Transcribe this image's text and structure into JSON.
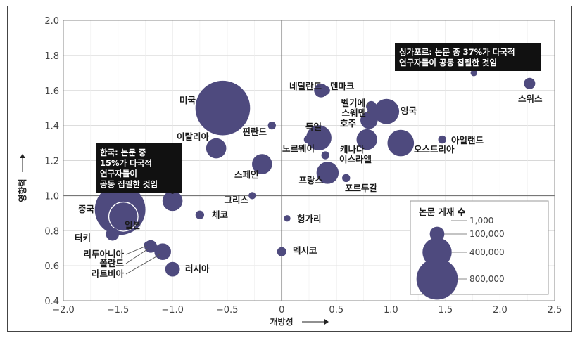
{
  "chart_data": {
    "type": "scatter",
    "xlabel": "개방성",
    "ylabel": "영향력",
    "xlim": [
      -2.0,
      2.5
    ],
    "ylim": [
      0.4,
      2.0
    ],
    "xticks": [
      "−2.0",
      "−1.5",
      "−1.0",
      "−0.5",
      "0",
      "0.5",
      "1.0",
      "1.5",
      "2.0",
      "2.5"
    ],
    "yticks": [
      "0.4",
      "0.6",
      "0.8",
      "1.0",
      "1.2",
      "1.4",
      "1.6",
      "1.8",
      "2.0"
    ],
    "bubble_color": "#4e4a7e",
    "grid": true,
    "points": [
      {
        "label": "스위스",
        "x": 2.27,
        "y": 1.64,
        "size": 60000
      },
      {
        "label": "싱가포르",
        "x": 1.76,
        "y": 1.7,
        "size": 20000
      },
      {
        "label": "네덜란드",
        "x": 0.36,
        "y": 1.6,
        "size": 90000
      },
      {
        "label": "덴마크",
        "x": 0.4,
        "y": 1.6,
        "size": 40000
      },
      {
        "label": "벨기에",
        "x": 0.82,
        "y": 1.51,
        "size": 50000
      },
      {
        "label": "스웨덴",
        "x": 0.83,
        "y": 1.47,
        "size": 55000
      },
      {
        "label": "영국",
        "x": 0.96,
        "y": 1.48,
        "size": 300000
      },
      {
        "label": "미국",
        "x": -0.54,
        "y": 1.5,
        "size": 1400000
      },
      {
        "label": "호주",
        "x": 0.8,
        "y": 1.43,
        "size": 140000
      },
      {
        "label": "핀란드",
        "x": -0.09,
        "y": 1.4,
        "size": 30000
      },
      {
        "label": "독일",
        "x": 0.34,
        "y": 1.33,
        "size": 300000
      },
      {
        "label": "노르웨이",
        "x": 0.24,
        "y": 1.32,
        "size": 30000
      },
      {
        "label": "아일랜드",
        "x": 1.47,
        "y": 1.32,
        "size": 30000
      },
      {
        "label": "캐나다",
        "x": 0.78,
        "y": 1.32,
        "size": 200000
      },
      {
        "label": "오스트리아",
        "x": 1.09,
        "y": 1.3,
        "size": 330000
      },
      {
        "label": "이탈리아",
        "x": -0.6,
        "y": 1.27,
        "size": 190000
      },
      {
        "label": "이스라엘",
        "x": 0.4,
        "y": 1.23,
        "size": 30000
      },
      {
        "label": "스페인",
        "x": -0.18,
        "y": 1.18,
        "size": 190000
      },
      {
        "label": "프랑스",
        "x": 0.42,
        "y": 1.13,
        "size": 230000
      },
      {
        "label": "포르투갈",
        "x": 0.59,
        "y": 1.1,
        "size": 30000
      },
      {
        "label": "그리스",
        "x": -0.27,
        "y": 1.0,
        "size": 25000
      },
      {
        "label": "한국",
        "x": -1.0,
        "y": 0.97,
        "size": 190000
      },
      {
        "label": "중국",
        "x": -1.48,
        "y": 0.92,
        "size": 1200000
      },
      {
        "label": "일본",
        "x": -1.45,
        "y": 0.88,
        "size": 400000
      },
      {
        "label": "체코",
        "x": -0.75,
        "y": 0.89,
        "size": 35000
      },
      {
        "label": "헝가리",
        "x": 0.05,
        "y": 0.87,
        "size": 20000
      },
      {
        "label": "터키",
        "x": -1.55,
        "y": 0.78,
        "size": 80000
      },
      {
        "label": "리투아니아",
        "x": -1.23,
        "y": 0.72,
        "size": 20000
      },
      {
        "label": "폴란드",
        "x": -1.2,
        "y": 0.71,
        "size": 75000
      },
      {
        "label": "라트비아",
        "x": -1.09,
        "y": 0.68,
        "size": 130000
      },
      {
        "label": "멕시코",
        "x": 0.0,
        "y": 0.68,
        "size": 40000
      },
      {
        "label": "러시아",
        "x": -1.0,
        "y": 0.58,
        "size": 100000
      }
    ],
    "annotations": [
      {
        "id": "singapore",
        "lines": [
          "싱가포르: 논문 중 37%가 다국적",
          "연구자들이 공동 집필한 것임"
        ]
      },
      {
        "id": "korea",
        "lines": [
          "한국: 논문 중",
          "15%가 다국적",
          "연구자들이",
          "공동 집필한 것임"
        ]
      }
    ],
    "legend": {
      "title": "논문 게재 수",
      "placement": "bottom-right",
      "items": [
        {
          "label": "1,000",
          "size": 1000
        },
        {
          "label": "100,000",
          "size": 100000
        },
        {
          "label": "400,000",
          "size": 400000
        },
        {
          "label": "800,000",
          "size": 800000
        }
      ]
    }
  }
}
